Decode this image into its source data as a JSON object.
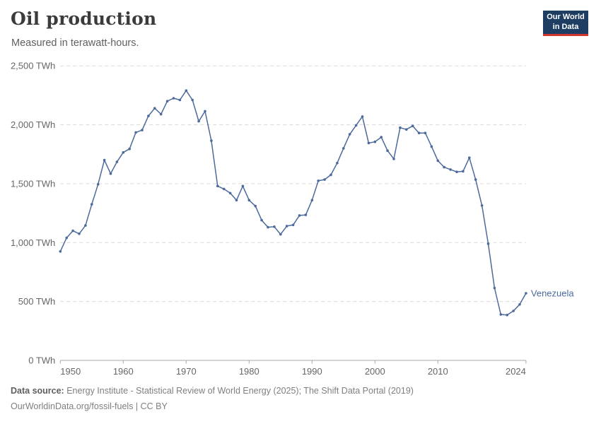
{
  "header": {
    "title": "Oil production",
    "subtitle": "Measured in terawatt-hours."
  },
  "logo": {
    "line1": "Our World",
    "line2": "in Data"
  },
  "footer": {
    "source_bold": "Data source:",
    "source_rest": " Energy Institute - Statistical Review of World Energy (2025); The Shift Data Portal (2019)",
    "license_line": "OurWorldinData.org/fossil-fuels | CC BY"
  },
  "colors": {
    "line": "#4c6a9c",
    "grid": "#dadada",
    "axis": "#a8a8a8",
    "tick_text": "#666666",
    "title_text": "#3b3b3b",
    "logo_bg": "#1d3d63",
    "logo_accent": "#d1352b"
  },
  "chart_data": {
    "type": "line",
    "title": "Oil production",
    "subtitle": "Measured in terawatt-hours.",
    "ylabel": "TWh",
    "xlabel": "",
    "xlim": [
      1950,
      2024
    ],
    "ylim": [
      0,
      2500
    ],
    "grid": "horizontal-dashed",
    "legend_position": "line-end-label",
    "yticks": [
      {
        "value": 0,
        "label": "0 TWh"
      },
      {
        "value": 500,
        "label": "500 TWh"
      },
      {
        "value": 1000,
        "label": "1,000 TWh"
      },
      {
        "value": 1500,
        "label": "1,500 TWh"
      },
      {
        "value": 2000,
        "label": "2,000 TWh"
      },
      {
        "value": 2500,
        "label": "2,500 TWh"
      }
    ],
    "xticks": [
      {
        "value": 1950,
        "label": "1950",
        "anchor": "start"
      },
      {
        "value": 1960,
        "label": "1960",
        "anchor": "middle"
      },
      {
        "value": 1970,
        "label": "1970",
        "anchor": "middle"
      },
      {
        "value": 1980,
        "label": "1980",
        "anchor": "middle"
      },
      {
        "value": 1990,
        "label": "1990",
        "anchor": "middle"
      },
      {
        "value": 2000,
        "label": "2000",
        "anchor": "middle"
      },
      {
        "value": 2010,
        "label": "2010",
        "anchor": "middle"
      },
      {
        "value": 2024,
        "label": "2024",
        "anchor": "end"
      }
    ],
    "series": [
      {
        "name": "Venezuela",
        "color": "#4c6a9c",
        "x": [
          1950,
          1951,
          1952,
          1953,
          1954,
          1955,
          1956,
          1957,
          1958,
          1959,
          1960,
          1961,
          1962,
          1963,
          1964,
          1965,
          1966,
          1967,
          1968,
          1969,
          1970,
          1971,
          1972,
          1973,
          1974,
          1975,
          1976,
          1977,
          1978,
          1979,
          1980,
          1981,
          1982,
          1983,
          1984,
          1985,
          1986,
          1987,
          1988,
          1989,
          1990,
          1991,
          1992,
          1993,
          1994,
          1995,
          1996,
          1997,
          1998,
          1999,
          2000,
          2001,
          2002,
          2003,
          2004,
          2005,
          2006,
          2007,
          2008,
          2009,
          2010,
          2011,
          2012,
          2013,
          2014,
          2015,
          2016,
          2017,
          2018,
          2019,
          2020,
          2021,
          2022,
          2023,
          2024
        ],
        "values": [
          925,
          1040,
          1100,
          1075,
          1145,
          1325,
          1495,
          1700,
          1585,
          1685,
          1765,
          1795,
          1935,
          1955,
          2075,
          2140,
          2090,
          2200,
          2225,
          2210,
          2290,
          2210,
          2030,
          2115,
          1865,
          1480,
          1455,
          1420,
          1360,
          1480,
          1360,
          1310,
          1190,
          1130,
          1135,
          1070,
          1140,
          1150,
          1230,
          1235,
          1360,
          1525,
          1535,
          1575,
          1675,
          1800,
          1920,
          1995,
          2070,
          1845,
          1855,
          1895,
          1780,
          1710,
          1975,
          1960,
          1990,
          1930,
          1930,
          1815,
          1695,
          1640,
          1620,
          1600,
          1605,
          1720,
          1535,
          1315,
          990,
          615,
          390,
          385,
          420,
          475,
          570
        ]
      }
    ]
  }
}
